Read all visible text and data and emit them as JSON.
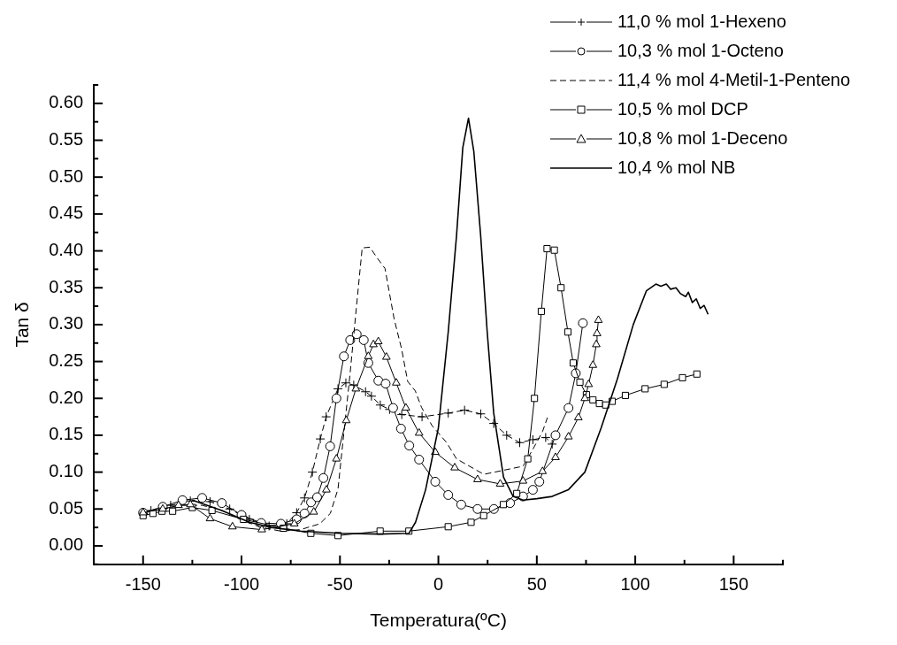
{
  "chart_data": {
    "type": "line",
    "xlabel": "Temperatura(ºC)",
    "ylabel": "Tan δ",
    "legend": "top right",
    "grid": false,
    "xlim": [
      -175,
      175
    ],
    "ylim": [
      -0.025,
      0.625
    ],
    "xticks": [
      {
        "value": -175,
        "label": null
      },
      -150,
      {
        "value": -125,
        "label": null
      },
      -100,
      {
        "value": -75,
        "label": null
      },
      -50,
      {
        "value": -25,
        "label": null
      },
      0,
      {
        "value": 25,
        "label": null
      },
      50,
      {
        "value": 75,
        "label": null
      },
      100,
      {
        "value": 125,
        "label": null
      },
      150,
      {
        "value": 175,
        "label": null
      }
    ],
    "yticks": [
      {
        "value": -0.025,
        "label": null
      },
      {
        "value": 0,
        "label": "0.00"
      },
      {
        "value": 0.025,
        "label": null
      },
      {
        "value": 0.05,
        "label": "0.05"
      },
      {
        "value": 0.075,
        "label": null
      },
      {
        "value": 0.1,
        "label": "0.10"
      },
      {
        "value": 0.125,
        "label": null
      },
      {
        "value": 0.15,
        "label": "0.15"
      },
      {
        "value": 0.175,
        "label": null
      },
      {
        "value": 0.2,
        "label": "0.20"
      },
      {
        "value": 0.225,
        "label": null
      },
      {
        "value": 0.25,
        "label": "0.25"
      },
      {
        "value": 0.275,
        "label": null
      },
      {
        "value": 0.3,
        "label": "0.30"
      },
      {
        "value": 0.325,
        "label": null
      },
      {
        "value": 0.35,
        "label": "0.35"
      },
      {
        "value": 0.375,
        "label": null
      },
      {
        "value": 0.4,
        "label": "0.40"
      },
      {
        "value": 0.425,
        "label": null
      },
      {
        "value": 0.45,
        "label": "0.45"
      },
      {
        "value": 0.475,
        "label": null
      },
      {
        "value": 0.5,
        "label": "0.50"
      },
      {
        "value": 0.525,
        "label": null
      },
      {
        "value": 0.55,
        "label": "0.55"
      },
      {
        "value": 0.575,
        "label": null
      },
      {
        "value": 0.6,
        "label": "0.60"
      },
      {
        "value": 0.625,
        "label": null
      }
    ],
    "series": [
      {
        "name": "11,0 % mol 1-Hexeno",
        "color": "#000000",
        "marker": "cross",
        "line_style": "dashed",
        "x": [
          -146,
          -136,
          -126,
          -116,
          -106,
          -96,
          -86,
          -77,
          -72,
          -68,
          -64,
          -60,
          -57,
          -51,
          -47,
          -43,
          -37,
          -34,
          -29.5,
          -24.8,
          -18.6,
          -8.3,
          5,
          13.3,
          21.5,
          28.1,
          34.7,
          41.3,
          48,
          54.5,
          57.8
        ],
        "values": [
          0.048,
          0.055,
          0.061,
          0.06,
          0.05,
          0.036,
          0.027,
          0.03,
          0.045,
          0.065,
          0.1,
          0.145,
          0.175,
          0.213,
          0.221,
          0.218,
          0.209,
          0.203,
          0.191,
          0.185,
          0.178,
          0.175,
          0.18,
          0.184,
          0.179,
          0.166,
          0.15,
          0.14,
          0.144,
          0.147,
          0.138
        ]
      },
      {
        "name": "10,3 % mol 1-Octeno",
        "color": "#000000",
        "marker": "circle",
        "line_style": "solid",
        "x": [
          -150,
          -140,
          -130,
          -120,
          -110,
          -100,
          -90,
          -80,
          -72,
          -68,
          -64.7,
          -61.6,
          -58.4,
          -55,
          -51.8,
          -48,
          -44.8,
          -41.5,
          -37.9,
          -35.6,
          -30.5,
          -26.8,
          -23,
          -19,
          -14.8,
          -9.8,
          -1.6,
          5,
          11.6,
          19.9,
          28.2,
          36.4,
          43,
          48,
          51.3,
          59.5,
          66.1,
          69.8,
          73.4
        ],
        "values": [
          0.045,
          0.053,
          0.062,
          0.065,
          0.058,
          0.042,
          0.031,
          0.03,
          0.036,
          0.044,
          0.059,
          0.066,
          0.092,
          0.135,
          0.2,
          0.257,
          0.279,
          0.287,
          0.279,
          0.248,
          0.224,
          0.22,
          0.187,
          0.159,
          0.136,
          0.117,
          0.087,
          0.069,
          0.056,
          0.05,
          0.05,
          0.058,
          0.067,
          0.076,
          0.087,
          0.15,
          0.187,
          0.234,
          0.302
        ]
      },
      {
        "name": "11,4 % mol 4-Metil-1-Penteno",
        "color": "#000000",
        "marker": "none",
        "line_style": "dashed",
        "x": [
          -150,
          -140,
          -130,
          -120,
          -110,
          -100,
          -90,
          -80,
          -70,
          -60.2,
          -54.9,
          -51,
          -44.8,
          -41.7,
          -38.7,
          -34.8,
          -31,
          -27.1,
          -22.5,
          -18.6,
          -15.6,
          -11.7,
          -8.6,
          -3.2,
          4.2,
          9.2,
          23.1,
          43,
          48,
          52.9,
          55.4
        ],
        "values": [
          0.045,
          0.05,
          0.055,
          0.055,
          0.048,
          0.035,
          0.025,
          0.02,
          0.022,
          0.03,
          0.044,
          0.077,
          0.235,
          0.322,
          0.404,
          0.405,
          0.39,
          0.376,
          0.308,
          0.266,
          0.223,
          0.21,
          0.188,
          0.163,
          0.14,
          0.118,
          0.097,
          0.108,
          0.131,
          0.155,
          0.174
        ]
      },
      {
        "name": "10,5 % mol DCP",
        "color": "#000000",
        "marker": "square",
        "line_style": "solid",
        "x": [
          -150,
          -145,
          -140.4,
          -135,
          -125,
          -115,
          -99,
          -78.7,
          -64.8,
          -51,
          -29.6,
          -15,
          5,
          16.6,
          23,
          33,
          39.8,
          45.4,
          48.8,
          52.3,
          55.2,
          58.9,
          62.3,
          65.8,
          68.5,
          71.9,
          75.2,
          78.5,
          81.8,
          85,
          88.3,
          95,
          105,
          114.7,
          124,
          131.3
        ],
        "values": [
          0.041,
          0.044,
          0.047,
          0.047,
          0.052,
          0.048,
          0.036,
          0.024,
          0.017,
          0.014,
          0.02,
          0.02,
          0.026,
          0.032,
          0.041,
          0.056,
          0.071,
          0.118,
          0.2,
          0.318,
          0.403,
          0.401,
          0.35,
          0.29,
          0.248,
          0.222,
          0.205,
          0.198,
          0.193,
          0.191,
          0.196,
          0.204,
          0.213,
          0.219,
          0.228,
          0.233
        ]
      },
      {
        "name": "10,8 % mol 1-Deceno",
        "color": "#000000",
        "marker": "triangle",
        "line_style": "solid",
        "x": [
          -150,
          -140,
          -132,
          -126,
          -116,
          -104.6,
          -89.7,
          -73.2,
          -63.3,
          -56.9,
          -51.8,
          -46.8,
          -41.9,
          -35.6,
          -33,
          -30.5,
          -26.4,
          -21.4,
          -16.5,
          -9.8,
          -1.6,
          8.3,
          19.9,
          31.4,
          43,
          52.9,
          59.5,
          66.1,
          71.1,
          74.4,
          76.3,
          78.5,
          80.2,
          80.6,
          81.3
        ],
        "values": [
          0.045,
          0.05,
          0.055,
          0.056,
          0.037,
          0.026,
          0.022,
          0.03,
          0.046,
          0.076,
          0.118,
          0.17,
          0.213,
          0.257,
          0.273,
          0.277,
          0.256,
          0.221,
          0.187,
          0.153,
          0.127,
          0.106,
          0.09,
          0.084,
          0.088,
          0.101,
          0.12,
          0.148,
          0.174,
          0.2,
          0.219,
          0.245,
          0.273,
          0.288,
          0.306
        ]
      },
      {
        "name": "10,4 % mol NB",
        "color": "#000000",
        "marker": "none",
        "line_style": "solid",
        "x": [
          -125,
          -110,
          -96,
          -85,
          -70,
          -50,
          -30,
          -15,
          -11.6,
          -6.5,
          0,
          5,
          9.2,
          12.4,
          15.3,
          18,
          21.5,
          24.8,
          28.1,
          33.1,
          38,
          43,
          50,
          57.8,
          66,
          74.4,
          82.7,
          90.9,
          99,
          105.7,
          110.5,
          113,
          115.8,
          118,
          120.7,
          123,
          125.6,
          127,
          129,
          131,
          133,
          135,
          137
        ],
        "values": [
          0.062,
          0.048,
          0.032,
          0.025,
          0.02,
          0.017,
          0.016,
          0.017,
          0.032,
          0.076,
          0.16,
          0.29,
          0.42,
          0.54,
          0.58,
          0.535,
          0.42,
          0.29,
          0.18,
          0.093,
          0.067,
          0.062,
          0.064,
          0.067,
          0.076,
          0.1,
          0.16,
          0.226,
          0.3,
          0.346,
          0.355,
          0.352,
          0.355,
          0.348,
          0.35,
          0.342,
          0.338,
          0.344,
          0.33,
          0.335,
          0.322,
          0.326,
          0.314
        ]
      }
    ]
  }
}
